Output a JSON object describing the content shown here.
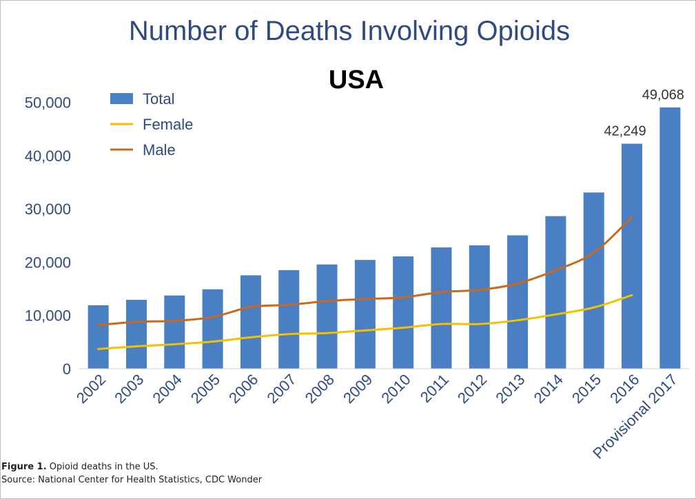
{
  "chart_data": {
    "type": "bar",
    "title": "Number of Deaths Involving Opioids",
    "subtitle": "USA",
    "categories": [
      "2002",
      "2003",
      "2004",
      "2005",
      "2006",
      "2007",
      "2008",
      "2009",
      "2010",
      "2011",
      "2012",
      "2013",
      "2014",
      "2015",
      "2016",
      "Provisional 2017"
    ],
    "y_ticks": [
      "0",
      "10,000",
      "20,000",
      "30,000",
      "40,000",
      "50,000"
    ],
    "ylim": [
      0,
      55000
    ],
    "grid": false,
    "legend_position": "top-left",
    "series": [
      {
        "name": "Total",
        "kind": "bar",
        "color": "#4a7fc4",
        "values": [
          11920,
          12940,
          13756,
          14918,
          17545,
          18516,
          19582,
          20422,
          21089,
          22784,
          23166,
          25052,
          28647,
          33091,
          42249,
          49068
        ]
      },
      {
        "name": "Female",
        "kind": "line",
        "color": "#f2c200",
        "values": [
          3700,
          4200,
          4600,
          5100,
          5900,
          6500,
          6700,
          7200,
          7700,
          8400,
          8400,
          9100,
          10200,
          11500,
          13800,
          null
        ]
      },
      {
        "name": "Male",
        "kind": "line",
        "color": "#c8691e",
        "values": [
          8200,
          8800,
          9000,
          9700,
          11600,
          12000,
          12700,
          13100,
          13400,
          14400,
          14800,
          16000,
          18500,
          21800,
          28500,
          null
        ]
      }
    ],
    "data_labels": [
      {
        "category": "2016",
        "text": "42,249"
      },
      {
        "category": "Provisional 2017",
        "text": "49,068"
      }
    ]
  },
  "caption": {
    "figure_label": "Figure 1.",
    "figure_text": " Opioid deaths in the US.",
    "source": "Source: National Center for Health Statistics, CDC Wonder"
  },
  "colors": {
    "title": "#2e4a82",
    "axis_text": "#2e4a82",
    "subtitle": "#000000"
  }
}
